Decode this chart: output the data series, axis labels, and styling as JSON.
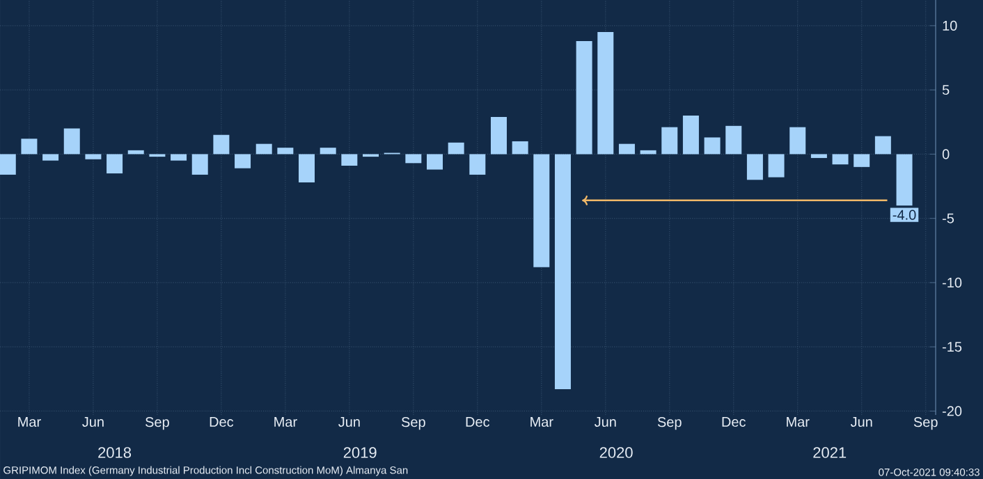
{
  "chart_data": {
    "type": "bar",
    "x": [
      "2018-02",
      "2018-03",
      "2018-04",
      "2018-05",
      "2018-06",
      "2018-07",
      "2018-08",
      "2018-09",
      "2018-10",
      "2018-11",
      "2018-12",
      "2019-01",
      "2019-02",
      "2019-03",
      "2019-04",
      "2019-05",
      "2019-06",
      "2019-07",
      "2019-08",
      "2019-09",
      "2019-10",
      "2019-11",
      "2019-12",
      "2020-01",
      "2020-02",
      "2020-03",
      "2020-04",
      "2020-05",
      "2020-06",
      "2020-07",
      "2020-08",
      "2020-09",
      "2020-10",
      "2020-11",
      "2020-12",
      "2021-01",
      "2021-02",
      "2021-03",
      "2021-04",
      "2021-05",
      "2021-06",
      "2021-07",
      "2021-08"
    ],
    "values": [
      -1.6,
      1.2,
      -0.5,
      2.0,
      -0.4,
      -1.5,
      0.3,
      -0.2,
      -0.5,
      -1.6,
      1.5,
      -1.1,
      0.8,
      0.5,
      -2.2,
      0.5,
      -0.9,
      -0.2,
      0.1,
      -0.7,
      -1.2,
      0.9,
      -1.6,
      2.9,
      1.0,
      -8.8,
      -18.3,
      8.8,
      9.5,
      0.8,
      0.3,
      2.1,
      3.0,
      1.3,
      2.2,
      -2.0,
      -1.8,
      2.1,
      -0.3,
      -0.8,
      -1.0,
      1.4,
      -4.0
    ],
    "value_labels": [
      null,
      null,
      null,
      null,
      null,
      null,
      null,
      null,
      null,
      null,
      null,
      null,
      null,
      null,
      null,
      null,
      null,
      null,
      null,
      null,
      null,
      null,
      null,
      null,
      null,
      null,
      null,
      null,
      null,
      null,
      null,
      null,
      null,
      null,
      null,
      null,
      null,
      null,
      null,
      null,
      null,
      null,
      "-4.0"
    ],
    "color": "#a6d3fa",
    "xlim": [
      "2018-01-20",
      "2021-09-15"
    ],
    "xticks": [
      {
        "value": "2018-03",
        "label": "Mar"
      },
      {
        "value": "2018-06",
        "label": "Jun"
      },
      {
        "value": "2018-09",
        "label": "Sep"
      },
      {
        "value": "2018-12",
        "label": "Dec"
      },
      {
        "value": "2019-03",
        "label": "Mar"
      },
      {
        "value": "2019-06",
        "label": "Jun"
      },
      {
        "value": "2019-09",
        "label": "Sep"
      },
      {
        "value": "2019-12",
        "label": "Dec"
      },
      {
        "value": "2020-03",
        "label": "Mar"
      },
      {
        "value": "2020-06",
        "label": "Jun"
      },
      {
        "value": "2020-09",
        "label": "Sep"
      },
      {
        "value": "2020-12",
        "label": "Dec"
      },
      {
        "value": "2021-03",
        "label": "Mar"
      },
      {
        "value": "2021-06",
        "label": "Jun"
      },
      {
        "value": "2021-09",
        "label": "Sep"
      }
    ],
    "ylim": [
      -20.3,
      12
    ],
    "yticks": [
      -20,
      -15,
      -10,
      -5,
      0,
      5,
      10
    ],
    "grid": true,
    "annotations": [
      "2018",
      "2019",
      "2020",
      "2021",
      "GRIPIMOM Index (Germany Industrial Production Incl Construction MoM) Almanya San",
      "07-Oct-2021 09:40:33"
    ]
  }
}
